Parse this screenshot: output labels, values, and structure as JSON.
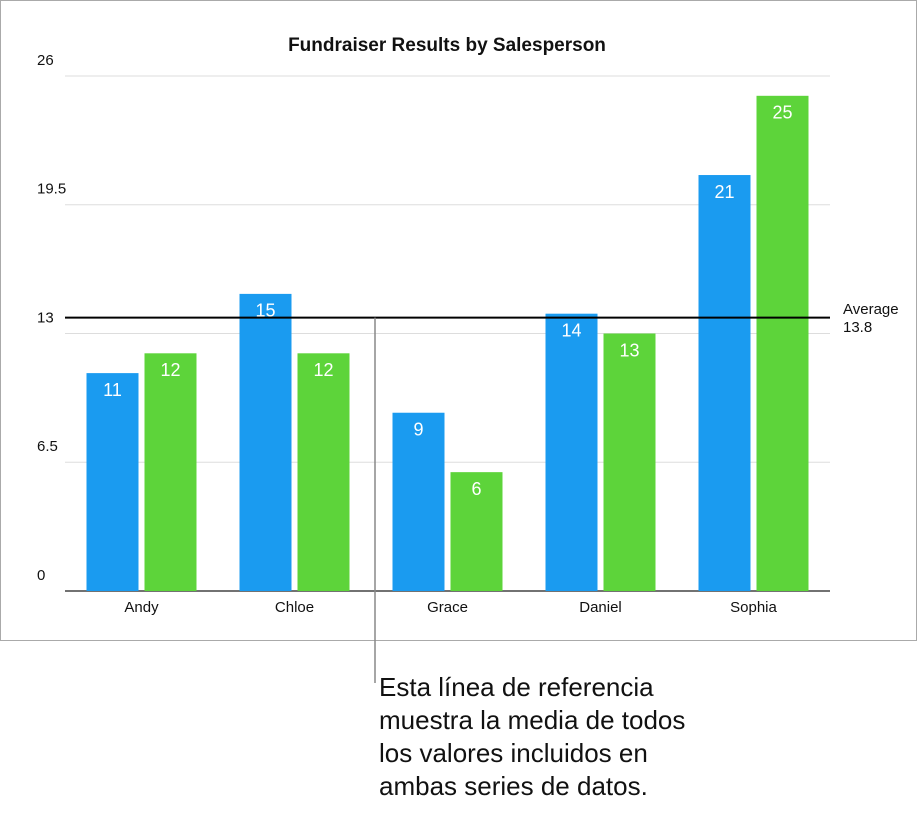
{
  "chart_data": {
    "type": "bar",
    "title": "Fundraiser Results by Salesperson",
    "categories": [
      "Andy",
      "Chloe",
      "Grace",
      "Daniel",
      "Sophia"
    ],
    "series": [
      {
        "color": "#1a9bf0",
        "values": [
          11,
          15,
          9,
          14,
          21
        ]
      },
      {
        "color": "#5dd43a",
        "values": [
          12,
          12,
          6,
          13,
          25
        ]
      }
    ],
    "ylim": [
      0,
      26
    ],
    "yticks": [
      0,
      6.5,
      13,
      19.5,
      26
    ],
    "grid": true,
    "reference_line": {
      "label": "Average",
      "value": 13.8
    },
    "annotation": [
      "Esta línea de referencia",
      "muestra la media de todos",
      "los valores incluidos en",
      "ambas series de datos."
    ]
  }
}
